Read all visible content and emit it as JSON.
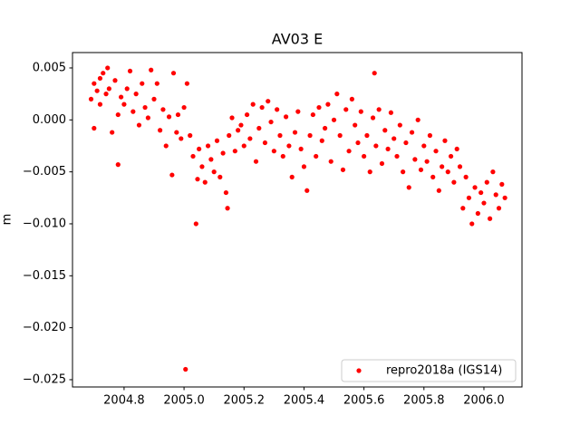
{
  "chart_data": {
    "type": "scatter",
    "title": "AV03 E",
    "ylabel": "m",
    "x": [
      2004.69,
      2004.7,
      2004.7,
      2004.71,
      2004.72,
      2004.72,
      2004.73,
      2004.74,
      2004.745,
      2004.75,
      2004.76,
      2004.77,
      2004.78,
      2004.78,
      2004.79,
      2004.8,
      2004.81,
      2004.82,
      2004.83,
      2004.84,
      2004.85,
      2004.86,
      2004.87,
      2004.88,
      2004.89,
      2004.9,
      2004.91,
      2004.92,
      2004.93,
      2004.94,
      2004.95,
      2004.96,
      2004.965,
      2004.975,
      2004.98,
      2004.99,
      2005.0,
      2005.005,
      2005.01,
      2005.02,
      2005.03,
      2005.04,
      2005.045,
      2005.05,
      2005.06,
      2005.07,
      2005.08,
      2005.09,
      2005.1,
      2005.11,
      2005.12,
      2005.13,
      2005.14,
      2005.145,
      2005.15,
      2005.16,
      2005.17,
      2005.18,
      2005.19,
      2005.2,
      2005.21,
      2005.22,
      2005.23,
      2005.24,
      2005.25,
      2005.26,
      2005.27,
      2005.28,
      2005.29,
      2005.3,
      2005.31,
      2005.32,
      2005.33,
      2005.34,
      2005.35,
      2005.36,
      2005.37,
      2005.38,
      2005.39,
      2005.4,
      2005.41,
      2005.42,
      2005.43,
      2005.44,
      2005.45,
      2005.46,
      2005.47,
      2005.48,
      2005.49,
      2005.5,
      2005.51,
      2005.52,
      2005.53,
      2005.54,
      2005.55,
      2005.56,
      2005.57,
      2005.58,
      2005.59,
      2005.6,
      2005.61,
      2005.62,
      2005.63,
      2005.635,
      2005.64,
      2005.65,
      2005.66,
      2005.67,
      2005.68,
      2005.69,
      2005.7,
      2005.71,
      2005.72,
      2005.73,
      2005.74,
      2005.75,
      2005.76,
      2005.77,
      2005.78,
      2005.79,
      2005.8,
      2005.81,
      2005.82,
      2005.83,
      2005.84,
      2005.85,
      2005.86,
      2005.87,
      2005.88,
      2005.89,
      2005.9,
      2005.91,
      2005.92,
      2005.93,
      2005.94,
      2005.95,
      2005.96,
      2005.97,
      2005.98,
      2005.99,
      2006.0,
      2006.01,
      2006.02,
      2006.03,
      2006.04,
      2006.05,
      2006.06,
      2006.07
    ],
    "series": [
      {
        "name": "repro2018a (IGS14)",
        "color": "#ff0000",
        "values": [
          0.002,
          0.0035,
          -0.0008,
          0.0028,
          0.004,
          0.0015,
          0.0045,
          0.0025,
          0.005,
          0.003,
          -0.0012,
          0.0038,
          0.0005,
          -0.0043,
          0.0022,
          0.0015,
          0.003,
          0.0047,
          0.0008,
          0.0025,
          -0.0005,
          0.0035,
          0.0012,
          0.0002,
          0.0048,
          0.002,
          0.0035,
          -0.001,
          0.001,
          -0.0025,
          0.0003,
          -0.0053,
          0.0045,
          -0.0012,
          0.0005,
          -0.0018,
          0.0012,
          -0.024,
          0.0035,
          -0.0015,
          -0.0035,
          -0.01,
          -0.0057,
          -0.0028,
          -0.0045,
          -0.006,
          -0.0025,
          -0.0038,
          -0.005,
          -0.002,
          -0.0055,
          -0.0032,
          -0.007,
          -0.0085,
          -0.0015,
          0.0002,
          -0.003,
          -0.001,
          -0.0005,
          -0.0025,
          0.0005,
          -0.0018,
          0.0015,
          -0.004,
          -0.0008,
          0.0012,
          -0.0022,
          0.0018,
          -0.0002,
          -0.003,
          0.001,
          -0.0015,
          -0.0035,
          0.0003,
          -0.0025,
          -0.0055,
          -0.0012,
          0.0008,
          -0.0028,
          -0.0045,
          -0.0068,
          -0.0015,
          0.0005,
          -0.0035,
          0.0012,
          -0.002,
          -0.0008,
          0.0015,
          -0.004,
          0.0,
          0.0025,
          -0.0015,
          -0.0048,
          0.001,
          -0.003,
          0.002,
          -0.0005,
          -0.0022,
          0.0008,
          -0.0035,
          -0.0015,
          -0.005,
          0.0002,
          0.0045,
          -0.0025,
          0.001,
          -0.0042,
          -0.001,
          -0.0028,
          0.0007,
          -0.0018,
          -0.0035,
          -0.0005,
          -0.005,
          -0.0022,
          -0.0065,
          -0.0012,
          -0.0038,
          0.0,
          -0.0048,
          -0.0025,
          -0.004,
          -0.0015,
          -0.0055,
          -0.003,
          -0.0068,
          -0.0045,
          -0.002,
          -0.005,
          -0.0035,
          -0.006,
          -0.0028,
          -0.0045,
          -0.0085,
          -0.0055,
          -0.0075,
          -0.01,
          -0.0065,
          -0.009,
          -0.007,
          -0.008,
          -0.006,
          -0.0095,
          -0.005,
          -0.0072,
          -0.0085,
          -0.0062,
          -0.0075
        ]
      }
    ],
    "xlim": [
      2004.628,
      2006.127
    ],
    "ylim": [
      -0.0257,
      0.00648
    ],
    "xticks": [
      2004.8,
      {
        "value": 2005.0,
        "label": "2005.0"
      },
      2005.2,
      2005.4,
      2005.6,
      2005.8,
      {
        "value": 2006.0,
        "label": "2006.0"
      }
    ],
    "yticks": [
      {
        "value": 0.005,
        "label": "0.005"
      },
      {
        "value": 0.0,
        "label": "0.000"
      },
      {
        "value": -0.005,
        "label": "−0.005"
      },
      {
        "value": -0.01,
        "label": "−0.010"
      },
      {
        "value": -0.015,
        "label": "−0.015"
      },
      {
        "value": -0.02,
        "label": "−0.020"
      },
      {
        "value": -0.025,
        "label": "−0.025"
      }
    ],
    "legend": "lower right",
    "grid": false
  }
}
